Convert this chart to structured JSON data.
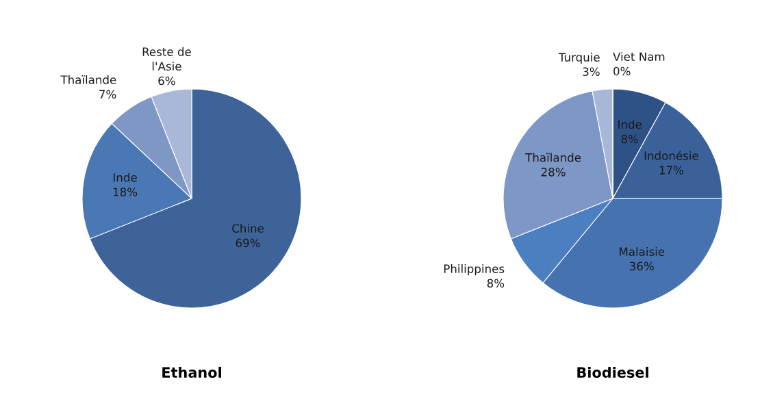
{
  "chart_data": [
    {
      "type": "pie",
      "title": "Ethanol",
      "categories": [
        "Chine",
        "Inde",
        "Thaïlande",
        "Reste de\nl'Asie"
      ],
      "values": [
        69,
        18,
        7,
        6
      ],
      "value_labels": [
        "69%",
        "18%",
        "7%",
        "6%"
      ],
      "colors": [
        "#3d6399",
        "#4a78b5",
        "#7f97c4",
        "#a9b8d8"
      ]
    },
    {
      "type": "pie",
      "title": "Biodiesel",
      "categories": [
        "Inde",
        "Indonésie",
        "Malaisie",
        "Philippines",
        "Thaïlande",
        "Turquie",
        "Viet Nam"
      ],
      "values": [
        8,
        17,
        36,
        8,
        28,
        3,
        0
      ],
      "value_labels": [
        "8%",
        "17%",
        "36%",
        "8%",
        "28%",
        "3%",
        "0%"
      ],
      "colors": [
        "#2f5286",
        "#3a6199",
        "#4672b0",
        "#4b7fc0",
        "#7d97c6",
        "#a7b7d8",
        "#c9d3e8"
      ]
    }
  ]
}
